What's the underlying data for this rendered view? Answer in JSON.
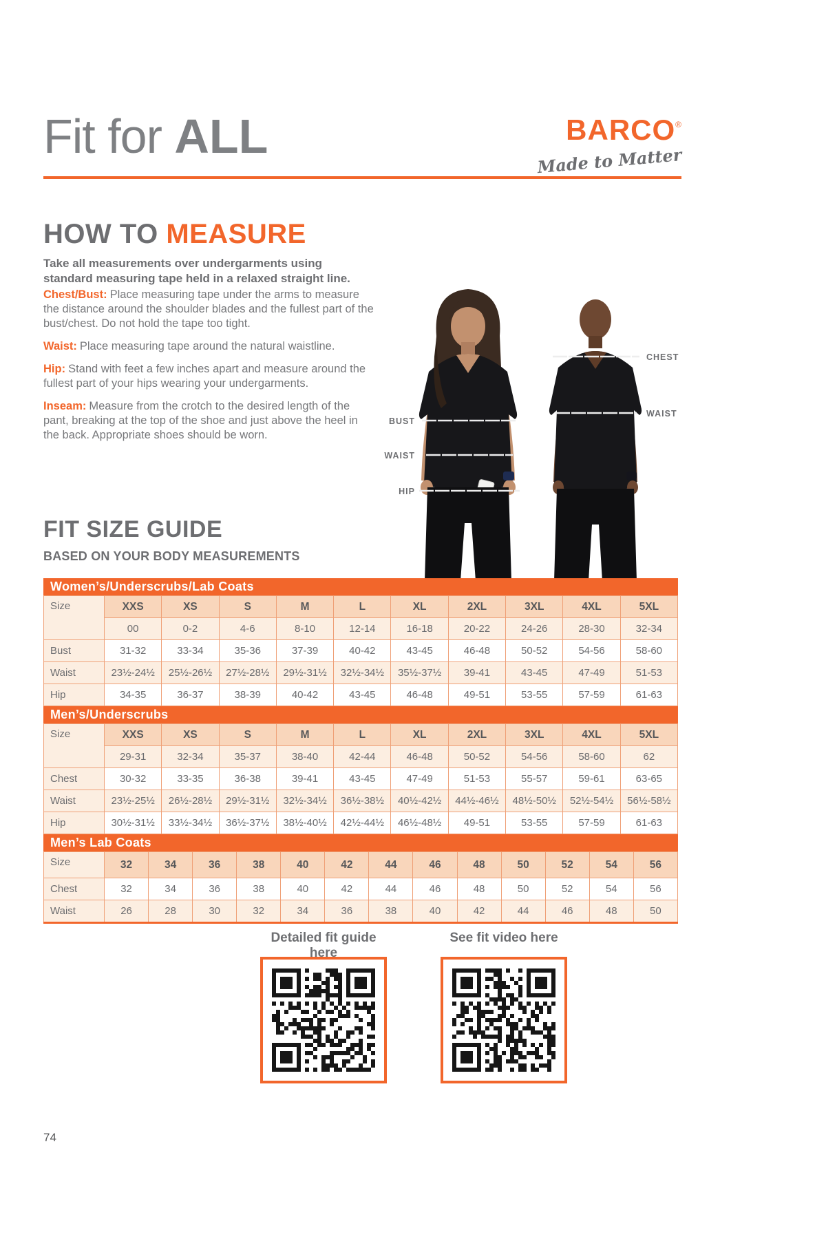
{
  "page": {
    "title_light": "Fit for ",
    "title_bold": "ALL",
    "page_number": "74"
  },
  "brand": {
    "name": "BARCO",
    "registered": "®",
    "tagline": "Made to Matter"
  },
  "colors": {
    "accent_orange": "#F2662B",
    "heading_gray": "#6D6E71",
    "table_border": "#EFA077",
    "table_header_bg": "#F9D6BB",
    "table_cream_bg": "#FCEEE1"
  },
  "how_to_measure": {
    "heading_gray": "HOW TO ",
    "heading_orange": "MEASURE",
    "intro": "Take all measurements over undergarments using standard measuring tape held in a relaxed straight line.",
    "items": [
      {
        "label": "Chest/Bust:",
        "text": "Place measuring tape under the arms to measure the distance around the shoulder blades and the fullest part of the bust/chest. Do not hold the tape too tight."
      },
      {
        "label": "Waist:",
        "text": "Place measuring tape around the natural waistline."
      },
      {
        "label": "Hip:",
        "text": "Stand with feet a few inches apart and measure around the fullest part of your hips wearing your undergarments."
      },
      {
        "label": "Inseam:",
        "text": "Measure from the crotch to the desired length of the pant, breaking at the top of the shoe and just above the heel in the back. Appropriate shoes should be worn."
      }
    ]
  },
  "figure_labels": {
    "woman": [
      "BUST",
      "WAIST",
      "HIP"
    ],
    "man": [
      "CHEST",
      "WAIST"
    ]
  },
  "fit_size_guide": {
    "heading": "FIT SIZE GUIDE",
    "subheading": "BASED ON YOUR BODY MEASUREMENTS",
    "tables": [
      {
        "title": "Women’s/Underscrubs/Lab Coats",
        "size_label": "Size",
        "sizes": [
          "XXS",
          "XS",
          "S",
          "M",
          "L",
          "XL",
          "2XL",
          "3XL",
          "4XL",
          "5XL"
        ],
        "numeric_sizes": [
          "00",
          "0-2",
          "4-6",
          "8-10",
          "12-14",
          "16-18",
          "20-22",
          "24-26",
          "28-30",
          "32-34"
        ],
        "rows": [
          {
            "label": "Bust",
            "values": [
              "31-32",
              "33-34",
              "35-36",
              "37-39",
              "40-42",
              "43-45",
              "46-48",
              "50-52",
              "54-56",
              "58-60"
            ]
          },
          {
            "label": "Waist",
            "values": [
              "23½-24½",
              "25½-26½",
              "27½-28½",
              "29½-31½",
              "32½-34½",
              "35½-37½",
              "39-41",
              "43-45",
              "47-49",
              "51-53"
            ]
          },
          {
            "label": "Hip",
            "values": [
              "34-35",
              "36-37",
              "38-39",
              "40-42",
              "43-45",
              "46-48",
              "49-51",
              "53-55",
              "57-59",
              "61-63"
            ]
          }
        ]
      },
      {
        "title": "Men’s/Underscrubs",
        "size_label": "Size",
        "sizes": [
          "XXS",
          "XS",
          "S",
          "M",
          "L",
          "XL",
          "2XL",
          "3XL",
          "4XL",
          "5XL"
        ],
        "numeric_sizes": [
          "29-31",
          "32-34",
          "35-37",
          "38-40",
          "42-44",
          "46-48",
          "50-52",
          "54-56",
          "58-60",
          "62"
        ],
        "rows": [
          {
            "label": "Chest",
            "values": [
              "30-32",
              "33-35",
              "36-38",
              "39-41",
              "43-45",
              "47-49",
              "51-53",
              "55-57",
              "59-61",
              "63-65"
            ]
          },
          {
            "label": "Waist",
            "values": [
              "23½-25½",
              "26½-28½",
              "29½-31½",
              "32½-34½",
              "36½-38½",
              "40½-42½",
              "44½-46½",
              "48½-50½",
              "52½-54½",
              "56½-58½"
            ]
          },
          {
            "label": "Hip",
            "values": [
              "30½-31½",
              "33½-34½",
              "36½-37½",
              "38½-40½",
              "42½-44½",
              "46½-48½",
              "49-51",
              "53-55",
              "57-59",
              "61-63"
            ]
          }
        ]
      },
      {
        "title": "Men’s Lab Coats",
        "size_label": "Size",
        "sizes": [
          "32",
          "34",
          "36",
          "38",
          "40",
          "42",
          "44",
          "46",
          "48",
          "50",
          "52",
          "54",
          "56"
        ],
        "rows": [
          {
            "label": "Chest",
            "values": [
              "32",
              "34",
              "36",
              "38",
              "40",
              "42",
              "44",
              "46",
              "48",
              "50",
              "52",
              "54",
              "56"
            ]
          },
          {
            "label": "Waist",
            "values": [
              "26",
              "28",
              "30",
              "32",
              "34",
              "36",
              "38",
              "40",
              "42",
              "44",
              "46",
              "48",
              "50"
            ]
          }
        ]
      }
    ]
  },
  "qr": {
    "left_label": "Detailed fit guide here",
    "right_label": "See fit video here"
  }
}
